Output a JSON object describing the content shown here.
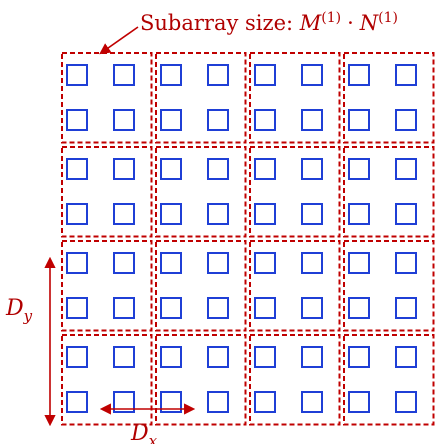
{
  "title": {
    "prefix": "Subarray size: ",
    "m": "M",
    "n": "N",
    "sup": "(1)",
    "dot": "·"
  },
  "labels": {
    "dx": "D",
    "dx_sub": "x",
    "dy": "D",
    "dy_sub": "y"
  },
  "array": {
    "subarray_rows": 4,
    "subarray_cols": 4,
    "elements_per_subarray": [
      2,
      2
    ]
  },
  "colors": {
    "subarray_border": "#c00000",
    "element": "#1f3fd6",
    "text": "#b00000",
    "arrow": "#c00000"
  }
}
